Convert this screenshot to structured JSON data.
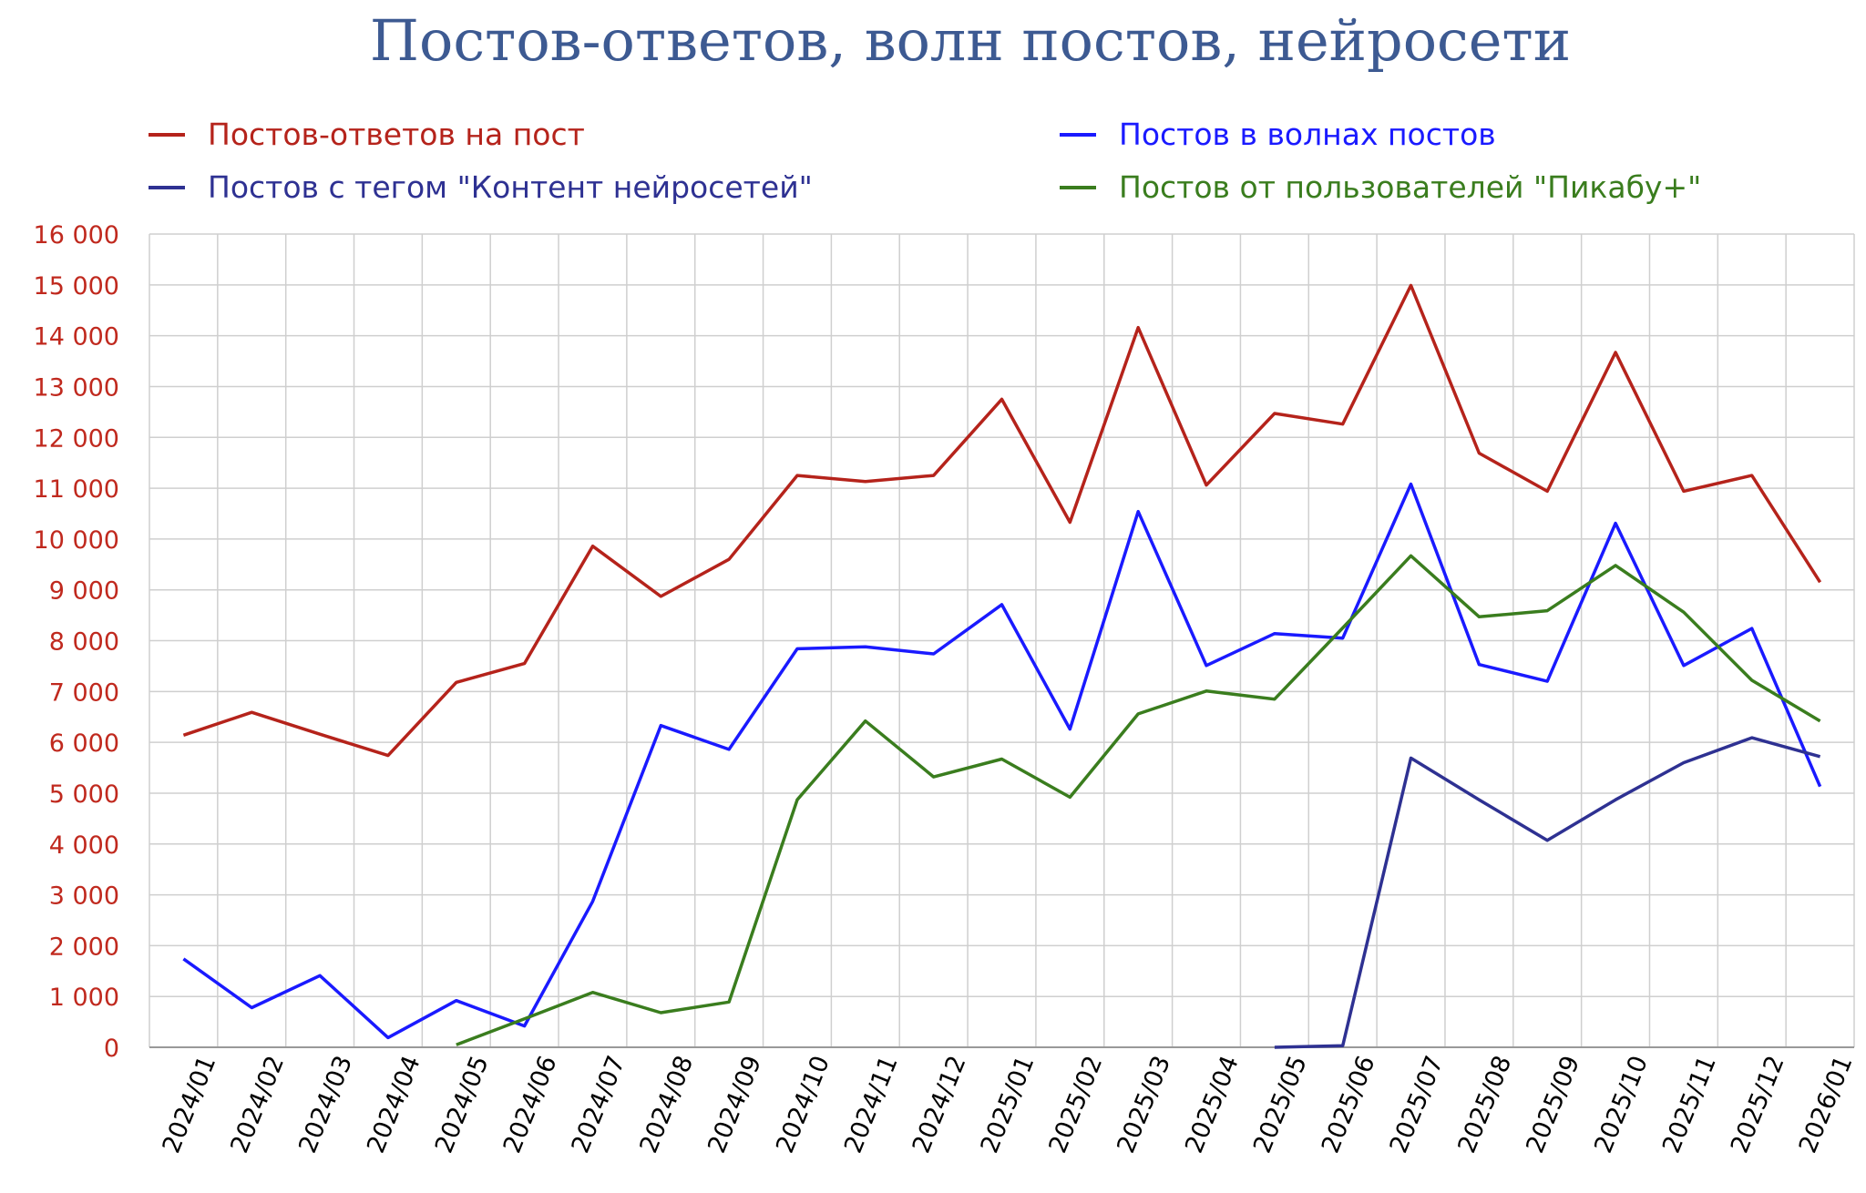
{
  "chart_data": {
    "type": "line",
    "title": "Постов-ответов, волн постов, нейросети",
    "xlabel": "",
    "ylabel": "",
    "ylim": [
      0,
      16000
    ],
    "yticks": [
      0,
      1000,
      2000,
      3000,
      4000,
      5000,
      6000,
      7000,
      8000,
      9000,
      10000,
      11000,
      12000,
      13000,
      14000,
      15000,
      16000
    ],
    "ytick_labels": [
      "0",
      "1 000",
      "2 000",
      "3 000",
      "4 000",
      "5 000",
      "6 000",
      "7 000",
      "8 000",
      "9 000",
      "10 000",
      "11 000",
      "12 000",
      "13 000",
      "14 000",
      "15 000",
      "16 000"
    ],
    "grid": true,
    "legend_placement": "top",
    "categories": [
      "2024/01",
      "2024/02",
      "2024/03",
      "2024/04",
      "2024/05",
      "2024/06",
      "2024/07",
      "2024/08",
      "2024/09",
      "2024/10",
      "2024/11",
      "2024/12",
      "2025/01",
      "2025/02",
      "2025/03",
      "2025/04",
      "2025/05",
      "2025/06",
      "2025/07",
      "2025/08",
      "2025/09",
      "2025/10",
      "2025/11",
      "2025/12",
      "2026/01"
    ],
    "series": [
      {
        "name": "Постов-ответов на пост",
        "color": "#b5231b",
        "values": [
          6140,
          6590,
          6160,
          5740,
          7180,
          7550,
          9860,
          8870,
          9600,
          11250,
          11130,
          11250,
          12750,
          10330,
          14160,
          11060,
          12470,
          12260,
          14990,
          11690,
          10940,
          13670,
          10940,
          11250,
          9150
        ]
      },
      {
        "name": "Постов в волнах постов",
        "color": "#1a1aff",
        "values": [
          1740,
          780,
          1410,
          190,
          920,
          420,
          2870,
          6330,
          5860,
          7840,
          7880,
          7740,
          8710,
          6260,
          10540,
          7510,
          8140,
          8050,
          11080,
          7530,
          7200,
          10310,
          7510,
          8240,
          5130
        ]
      },
      {
        "name": "Постов с тегом \"Контент нейросетей\"",
        "color": "#2e3192",
        "values": [
          null,
          null,
          null,
          null,
          null,
          null,
          null,
          null,
          null,
          null,
          null,
          null,
          null,
          null,
          null,
          null,
          0,
          30,
          5690,
          4870,
          4070,
          4870,
          5600,
          6090,
          5720
        ]
      },
      {
        "name": "Постов от пользователей \"Пикабу+\"",
        "color": "#3a7d1e",
        "values": [
          null,
          null,
          null,
          null,
          50,
          560,
          1080,
          680,
          890,
          4870,
          6420,
          5320,
          5670,
          4920,
          6560,
          7010,
          6850,
          8250,
          9670,
          8470,
          8590,
          9480,
          8560,
          7220,
          6420
        ]
      }
    ]
  }
}
